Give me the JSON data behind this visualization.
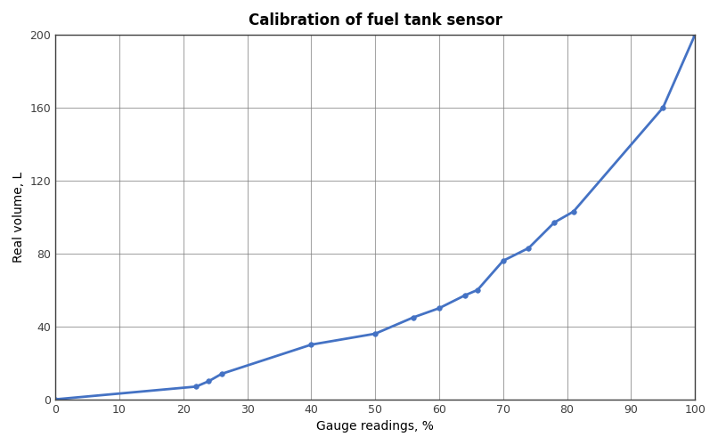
{
  "title": "Calibration of fuel tank sensor",
  "xlabel": "Gauge readings, %",
  "ylabel": "Real volume, L",
  "x": [
    0,
    22,
    24,
    26,
    40,
    50,
    56,
    60,
    64,
    66,
    70,
    74,
    78,
    81,
    95,
    100
  ],
  "y": [
    0,
    7,
    10,
    14,
    30,
    36,
    45,
    50,
    57,
    60,
    76,
    83,
    97,
    103,
    160,
    200
  ],
  "line_color": "#4472C4",
  "marker": "o",
  "marker_size": 4,
  "xlim": [
    0,
    100
  ],
  "ylim": [
    0,
    200
  ],
  "xticks": [
    0,
    10,
    20,
    30,
    40,
    50,
    60,
    70,
    80,
    90,
    100
  ],
  "yticks": [
    0,
    40,
    80,
    120,
    160,
    200
  ],
  "grid": true,
  "title_fontsize": 12,
  "label_fontsize": 10,
  "bg_color": "#ffffff",
  "grid_color": "#808080",
  "tick_color": "#404040"
}
